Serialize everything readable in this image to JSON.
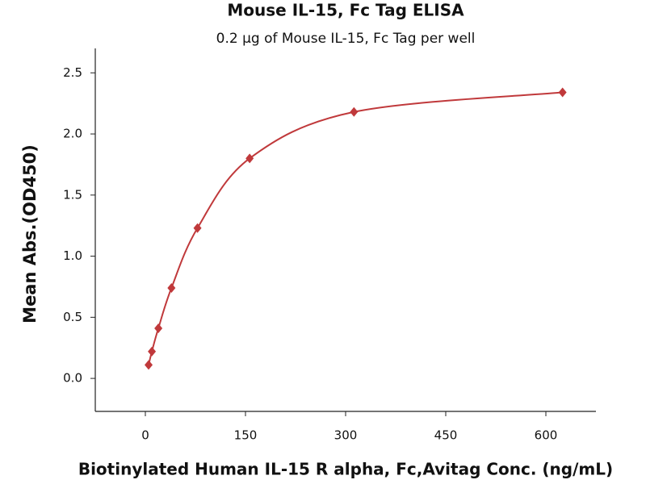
{
  "chart_data": {
    "type": "scatter",
    "title": "Mouse IL-15, Fc Tag ELISA",
    "subtitle": "0.2 µg of Mouse IL-15, Fc Tag per well",
    "x_label": "Biotinylated Human IL-15 R alpha, Fc,Avitag Conc. (ng/mL)",
    "y_label": "Mean Abs.(OD450)",
    "series": [
      {
        "color": "#c0393b",
        "x": [
          4.88,
          9.77,
          19.5,
          39.1,
          78.1,
          156.25,
          312.5,
          625
        ],
        "values": [
          0.11,
          0.22,
          0.41,
          0.74,
          1.23,
          1.8,
          2.18,
          2.34
        ]
      }
    ],
    "xlim": [
      -75,
      675
    ],
    "ylim": [
      -0.27,
      2.7
    ],
    "xticks": [
      0,
      150,
      300,
      450,
      600
    ],
    "yticks": [
      {
        "value": 0,
        "label": "0.0"
      },
      {
        "value": 0.5,
        "label": "0.5"
      },
      {
        "value": 1,
        "label": "1.0"
      },
      {
        "value": 1.5,
        "label": "1.5"
      },
      {
        "value": 2,
        "label": "2.0"
      },
      {
        "value": 2.5,
        "label": "2.5"
      }
    ]
  }
}
